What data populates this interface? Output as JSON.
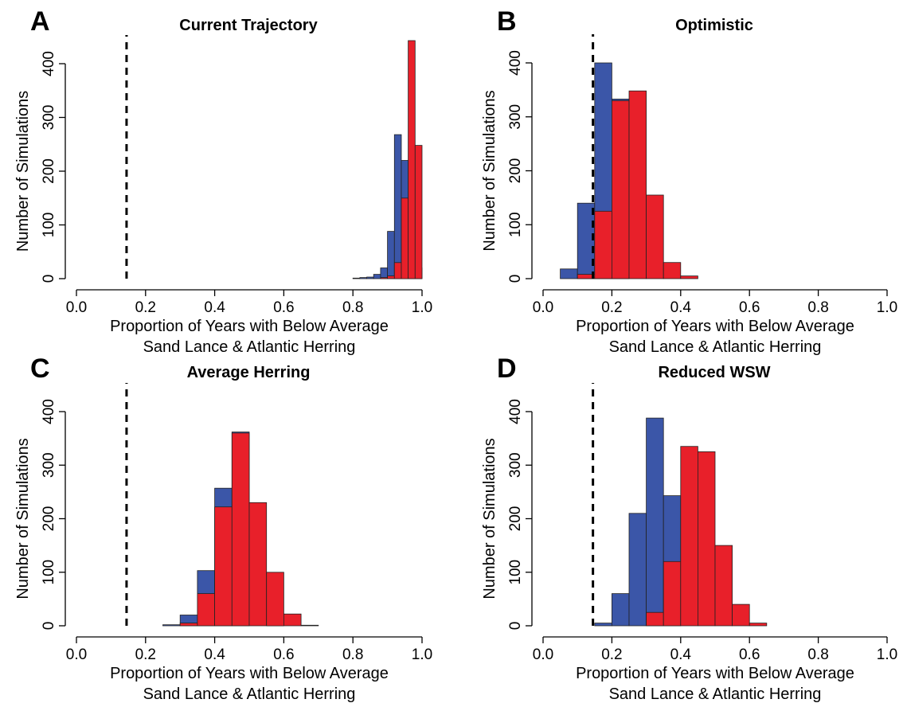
{
  "chart_data": [
    {
      "panel": "A",
      "title": "Current Trajectory",
      "type": "histogram",
      "xlabel": [
        "Proportion of Years with Below Average",
        "Sand Lance & Atlantic Herring"
      ],
      "ylabel": "Number of Simulations",
      "xlim": [
        0,
        1
      ],
      "ylim": [
        0,
        450
      ],
      "x_ticks": [
        "0.0",
        "0.2",
        "0.4",
        "0.6",
        "0.8",
        "1.0"
      ],
      "y_ticks": [
        "0",
        "100",
        "200",
        "300",
        "400"
      ],
      "reference_line_x": 0.145,
      "colors": {
        "blue": "#3b56a8",
        "red": "#e8202a"
      },
      "series": [
        {
          "color": "blue",
          "bin_edges": [
            0.8,
            0.82,
            0.84,
            0.86,
            0.88,
            0.9,
            0.92,
            0.94,
            0.96,
            0.98,
            1.0
          ],
          "counts": [
            1,
            2,
            3,
            8,
            20,
            88,
            268,
            220,
            150,
            20
          ]
        },
        {
          "color": "red",
          "bin_edges": [
            0.88,
            0.9,
            0.92,
            0.94,
            0.96,
            0.98,
            1.0
          ],
          "counts": [
            2,
            5,
            30,
            150,
            443,
            248
          ]
        }
      ]
    },
    {
      "panel": "B",
      "title": "Optimistic",
      "type": "histogram",
      "xlabel": [
        "Proportion of Years with Below Average",
        "Sand Lance & Atlantic Herring"
      ],
      "ylabel": "Number of Simulations",
      "xlim": [
        0,
        1
      ],
      "ylim": [
        0,
        420
      ],
      "x_ticks": [
        "0.0",
        "0.2",
        "0.4",
        "0.6",
        "0.8",
        "1.0"
      ],
      "y_ticks": [
        "0",
        "100",
        "200",
        "300",
        "400"
      ],
      "reference_line_x": 0.145,
      "colors": {
        "blue": "#3b56a8",
        "red": "#e8202a"
      },
      "series": [
        {
          "color": "blue",
          "bin_edges": [
            0.05,
            0.1,
            0.15,
            0.2,
            0.25,
            0.3,
            0.35,
            0.4,
            0.45
          ],
          "counts": [
            18,
            140,
            400,
            333,
            0,
            0,
            0,
            0
          ]
        },
        {
          "color": "red",
          "bin_edges": [
            0.05,
            0.1,
            0.15,
            0.2,
            0.25,
            0.3,
            0.35,
            0.4,
            0.45
          ],
          "counts": [
            0,
            8,
            125,
            330,
            348,
            155,
            30,
            5
          ]
        }
      ]
    },
    {
      "panel": "C",
      "title": "Average Herring",
      "type": "histogram",
      "xlabel": [
        "Proportion of Years with Below Average",
        "Sand Lance & Atlantic Herring"
      ],
      "ylabel": "Number of Simulations",
      "xlim": [
        0,
        1
      ],
      "ylim": [
        0,
        400
      ],
      "x_ticks": [
        "0.0",
        "0.2",
        "0.4",
        "0.6",
        "0.8",
        "1.0"
      ],
      "y_ticks": [
        "0",
        "100",
        "200",
        "300",
        "400"
      ],
      "reference_line_x": 0.145,
      "colors": {
        "blue": "#3b56a8",
        "red": "#e8202a"
      },
      "series": [
        {
          "color": "blue",
          "bin_edges": [
            0.25,
            0.3,
            0.35,
            0.4,
            0.45,
            0.5,
            0.55,
            0.6,
            0.65,
            0.7
          ],
          "counts": [
            2,
            20,
            103,
            257,
            362,
            0,
            0,
            0,
            0
          ]
        },
        {
          "color": "red",
          "bin_edges": [
            0.25,
            0.3,
            0.35,
            0.4,
            0.45,
            0.5,
            0.55,
            0.6,
            0.65,
            0.7
          ],
          "counts": [
            0,
            5,
            60,
            222,
            360,
            230,
            100,
            22,
            1
          ]
        }
      ]
    },
    {
      "panel": "D",
      "title": "Reduced WSW",
      "type": "histogram",
      "xlabel": [
        "Proportion of Years with Below Average",
        "Sand Lance & Atlantic Herring"
      ],
      "ylabel": "Number of Simulations",
      "xlim": [
        0,
        1
      ],
      "ylim": [
        0,
        400
      ],
      "x_ticks": [
        "0.0",
        "0.2",
        "0.4",
        "0.6",
        "0.8",
        "1.0"
      ],
      "y_ticks": [
        "0",
        "100",
        "200",
        "300",
        "400"
      ],
      "reference_line_x": 0.145,
      "colors": {
        "blue": "#3b56a8",
        "red": "#e8202a"
      },
      "series": [
        {
          "color": "blue",
          "bin_edges": [
            0.15,
            0.2,
            0.25,
            0.3,
            0.35,
            0.4
          ],
          "counts": [
            5,
            60,
            210,
            388,
            243
          ]
        },
        {
          "color": "red",
          "bin_edges": [
            0.3,
            0.35,
            0.4,
            0.45,
            0.5,
            0.55,
            0.6,
            0.65,
            0.7
          ],
          "counts": [
            25,
            120,
            335,
            325,
            150,
            40,
            5,
            0
          ]
        }
      ]
    }
  ]
}
